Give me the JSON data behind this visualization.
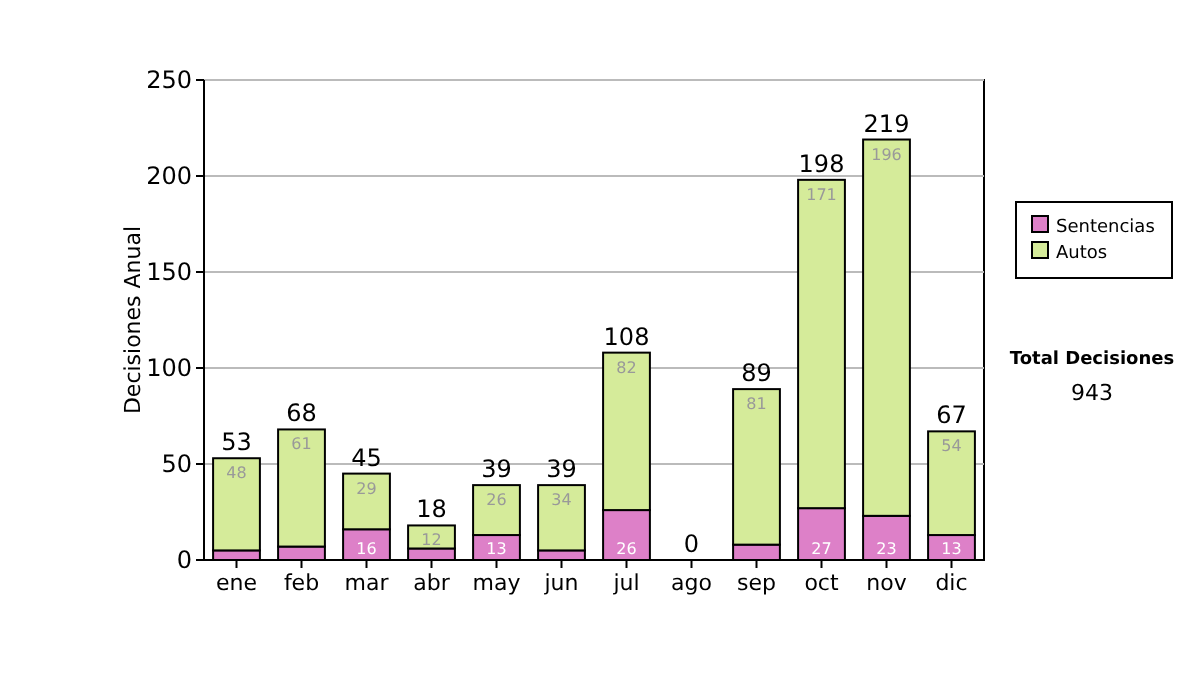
{
  "chart_data": {
    "type": "bar",
    "stacked": true,
    "ylabel": "Decisiones Anual",
    "categories": [
      "ene",
      "feb",
      "mar",
      "abr",
      "may",
      "jun",
      "jul",
      "ago",
      "sep",
      "oct",
      "nov",
      "dic"
    ],
    "series": [
      {
        "name": "Sentencias",
        "color": "#dd80c8",
        "values": [
          5,
          7,
          16,
          6,
          13,
          5,
          26,
          0,
          8,
          27,
          23,
          13
        ],
        "value_labels": [
          null,
          null,
          "16",
          null,
          "13",
          null,
          "26",
          null,
          null,
          "27",
          "23",
          "13"
        ]
      },
      {
        "name": "Autos",
        "color": "#d5eb9a",
        "values": [
          48,
          61,
          29,
          12,
          26,
          34,
          82,
          0,
          81,
          171,
          196,
          54
        ],
        "value_labels": [
          "48",
          "61",
          "29",
          "12",
          "26",
          "34",
          "82",
          null,
          "81",
          "171",
          "196",
          "54"
        ]
      }
    ],
    "totals": [
      "53",
      "68",
      "45",
      "18",
      "39",
      "39",
      "108",
      "0",
      "89",
      "198",
      "219",
      "67"
    ],
    "ylim": [
      0,
      250
    ],
    "yticks": [
      0,
      50,
      100,
      150,
      200,
      250
    ],
    "grid": "y",
    "legend": "right",
    "annotations": [
      "Total Decisiones",
      "943"
    ]
  }
}
